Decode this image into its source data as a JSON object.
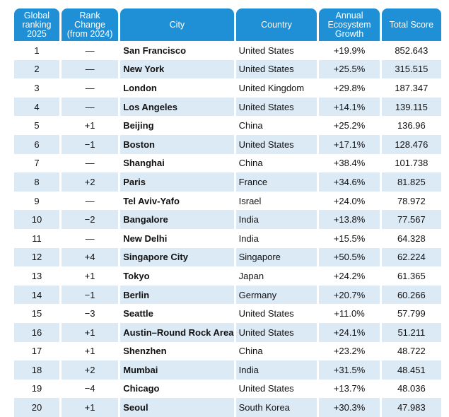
{
  "headers": {
    "rank": "Global ranking 2025",
    "change": "Rank Change (from 2024)",
    "city": "City",
    "country": "Country",
    "growth": "Annual Ecosystem Growth",
    "score": "Total Score"
  },
  "rows": [
    {
      "rank": "1",
      "change": "—",
      "city": "San Francisco",
      "country": "United States",
      "growth": "+19.9%",
      "score": "852.643"
    },
    {
      "rank": "2",
      "change": "—",
      "city": "New York",
      "country": "United States",
      "growth": "+25.5%",
      "score": "315.515"
    },
    {
      "rank": "3",
      "change": "—",
      "city": "London",
      "country": "United Kingdom",
      "growth": "+29.8%",
      "score": "187.347"
    },
    {
      "rank": "4",
      "change": "—",
      "city": "Los Angeles",
      "country": "United States",
      "growth": "+14.1%",
      "score": "139.115"
    },
    {
      "rank": "5",
      "change": "+1",
      "city": "Beijing",
      "country": "China",
      "growth": "+25.2%",
      "score": "136.96"
    },
    {
      "rank": "6",
      "change": "−1",
      "city": "Boston",
      "country": "United States",
      "growth": "+17.1%",
      "score": "128.476"
    },
    {
      "rank": "7",
      "change": "—",
      "city": "Shanghai",
      "country": "China",
      "growth": "+38.4%",
      "score": "101.738"
    },
    {
      "rank": "8",
      "change": "+2",
      "city": "Paris",
      "country": "France",
      "growth": "+34.6%",
      "score": "81.825"
    },
    {
      "rank": "9",
      "change": "—",
      "city": "Tel Aviv-Yafo",
      "country": "Israel",
      "growth": "+24.0%",
      "score": "78.972"
    },
    {
      "rank": "10",
      "change": "−2",
      "city": "Bangalore",
      "country": "India",
      "growth": "+13.8%",
      "score": "77.567"
    },
    {
      "rank": "11",
      "change": "—",
      "city": "New Delhi",
      "country": "India",
      "growth": "+15.5%",
      "score": "64.328"
    },
    {
      "rank": "12",
      "change": "+4",
      "city": "Singapore City",
      "country": "Singapore",
      "growth": "+50.5%",
      "score": "62.224"
    },
    {
      "rank": "13",
      "change": "+1",
      "city": "Tokyo",
      "country": "Japan",
      "growth": "+24.2%",
      "score": "61.365"
    },
    {
      "rank": "14",
      "change": "−1",
      "city": "Berlin",
      "country": "Germany",
      "growth": "+20.7%",
      "score": "60.266"
    },
    {
      "rank": "15",
      "change": "−3",
      "city": "Seattle",
      "country": "United States",
      "growth": "+11.0%",
      "score": "57.799"
    },
    {
      "rank": "16",
      "change": "+1",
      "city": "Austin–Round Rock Area",
      "country": "United States",
      "growth": "+24.1%",
      "score": "51.211"
    },
    {
      "rank": "17",
      "change": "+1",
      "city": "Shenzhen",
      "country": "China",
      "growth": "+23.2%",
      "score": "48.722"
    },
    {
      "rank": "18",
      "change": "+2",
      "city": "Mumbai",
      "country": "India",
      "growth": "+31.5%",
      "score": "48.451"
    },
    {
      "rank": "19",
      "change": "−4",
      "city": "Chicago",
      "country": "United States",
      "growth": "+13.7%",
      "score": "48.036"
    },
    {
      "rank": "20",
      "change": "+1",
      "city": "Seoul",
      "country": "South Korea",
      "growth": "+30.3%",
      "score": "47.983"
    }
  ]
}
